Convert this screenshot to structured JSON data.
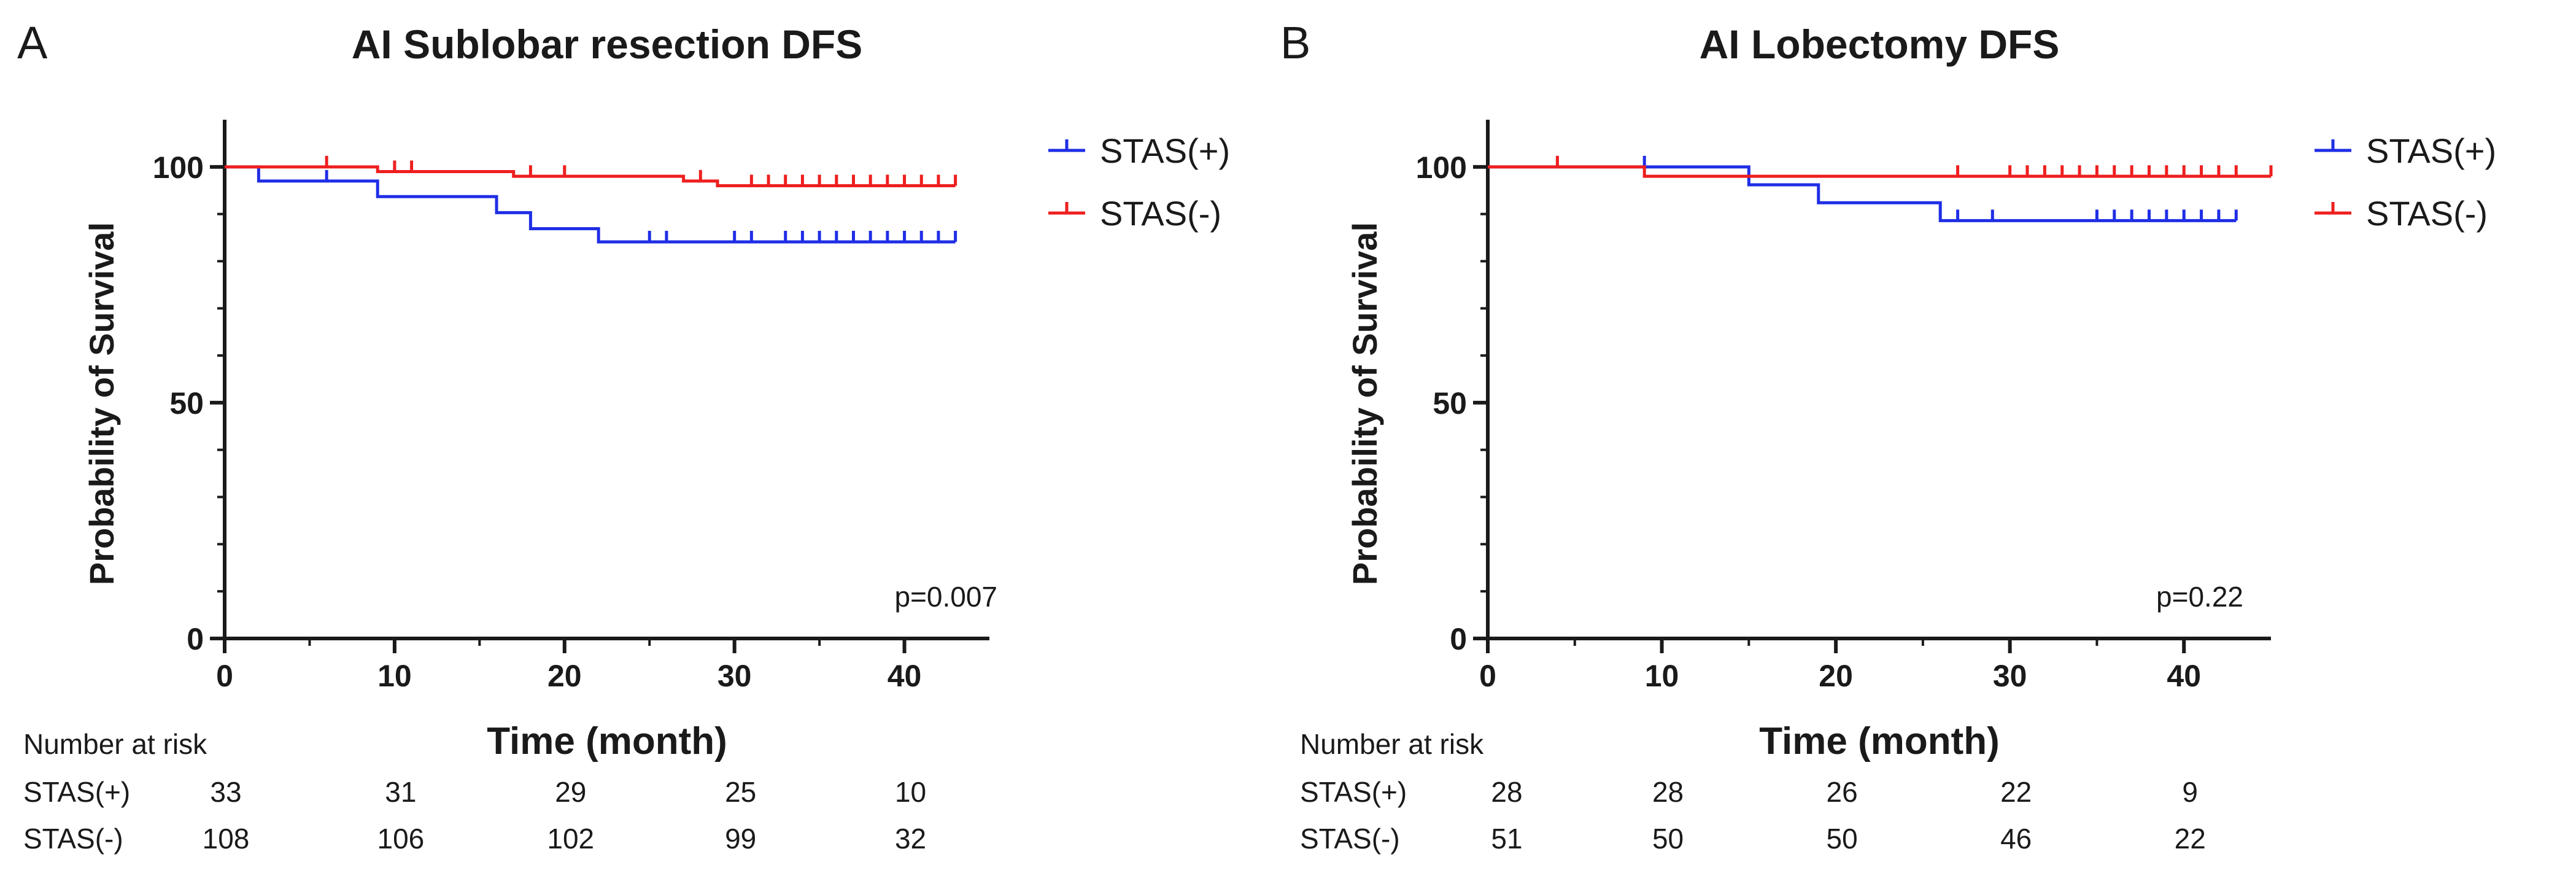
{
  "chart_data": [
    {
      "type": "line",
      "step": true,
      "panel_label": "A",
      "title": "AI Sublobar resection DFS",
      "xlabel": "Time (month)",
      "ylabel": "Probability of Survival",
      "xlim": [
        0,
        45
      ],
      "ylim": [
        0,
        110
      ],
      "x_ticks": [
        "0",
        "10",
        "20",
        "30",
        "40"
      ],
      "y_ticks": [
        "0",
        "50",
        "100"
      ],
      "p_value": "p=0.007",
      "legend_position": "top-right",
      "series": [
        {
          "name": "STAS(+)",
          "color": "#1f2ee6",
          "x": [
            0,
            2,
            9,
            16,
            18,
            22,
            43
          ],
          "y": [
            100,
            97,
            93.7,
            90.3,
            86.9,
            84.1,
            84.1
          ],
          "censor_x": [
            6,
            25,
            26,
            30,
            31,
            33,
            34,
            35,
            36,
            37,
            38,
            39,
            40,
            41,
            42,
            43
          ]
        },
        {
          "name": "STAS(-)",
          "color": "#ee1f1f",
          "x": [
            0,
            9,
            17,
            27,
            29,
            43
          ],
          "y": [
            100,
            99,
            98,
            97,
            96,
            96
          ],
          "censor_x": [
            6,
            10,
            11,
            18,
            20,
            28,
            31,
            32,
            33,
            34,
            35,
            36,
            37,
            38,
            39,
            40,
            41,
            42,
            43
          ]
        }
      ],
      "risk_table": {
        "header": "Number at risk",
        "times": [
          0,
          10,
          20,
          30,
          40
        ],
        "rows": [
          {
            "label": "STAS(+)",
            "values": [
              "33",
              "31",
              "29",
              "25",
              "10"
            ]
          },
          {
            "label": "STAS(-)",
            "values": [
              "108",
              "106",
              "102",
              "99",
              "32"
            ]
          }
        ]
      }
    },
    {
      "type": "line",
      "step": true,
      "panel_label": "B",
      "title": "AI Lobectomy DFS",
      "xlabel": "Time (month)",
      "ylabel": "Probability of Survival",
      "xlim": [
        0,
        45
      ],
      "ylim": [
        0,
        110
      ],
      "x_ticks": [
        "0",
        "10",
        "20",
        "30",
        "40"
      ],
      "y_ticks": [
        "0",
        "50",
        "100"
      ],
      "p_value": "p=0.22",
      "legend_position": "top-right",
      "series": [
        {
          "name": "STAS(+)",
          "color": "#1f2ee6",
          "x": [
            0,
            15,
            19,
            26,
            43
          ],
          "y": [
            100,
            96.2,
            92.4,
            88.6,
            88.6
          ],
          "censor_x": [
            9,
            27,
            29,
            35,
            36,
            37,
            38,
            39,
            40,
            41,
            42,
            43
          ]
        },
        {
          "name": "STAS(-)",
          "color": "#ee1f1f",
          "x": [
            0,
            9,
            45
          ],
          "y": [
            100,
            98,
            98
          ],
          "censor_x": [
            4,
            27,
            30,
            31,
            32,
            33,
            34,
            35,
            36,
            37,
            38,
            39,
            40,
            41,
            42,
            43,
            45
          ]
        }
      ],
      "risk_table": {
        "header": "Number at risk",
        "times": [
          0,
          10,
          20,
          30,
          40
        ],
        "rows": [
          {
            "label": "STAS(+)",
            "values": [
              "28",
              "28",
              "26",
              "22",
              "9"
            ]
          },
          {
            "label": "STAS(-)",
            "values": [
              "51",
              "50",
              "50",
              "46",
              "22"
            ]
          }
        ]
      }
    }
  ]
}
